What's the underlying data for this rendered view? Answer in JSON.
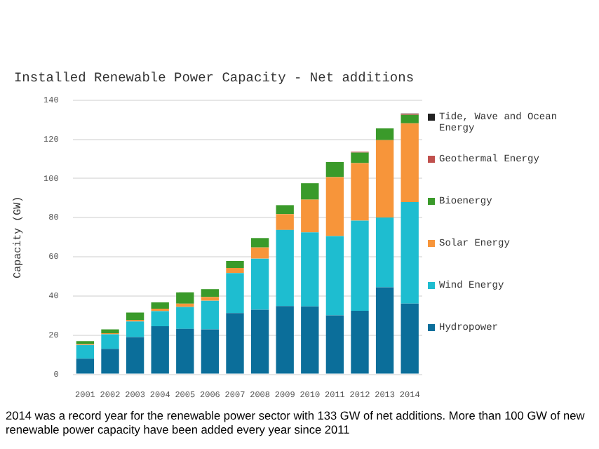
{
  "chart_data": {
    "type": "bar",
    "stacked": true,
    "title": "Installed Renewable Power Capacity - Net additions",
    "ylabel": "Capacity (GW)",
    "categories": [
      "2001",
      "2002",
      "2003",
      "2004",
      "2005",
      "2006",
      "2007",
      "2008",
      "2009",
      "2010",
      "2011",
      "2012",
      "2013",
      "2014"
    ],
    "series": [
      {
        "name": "Hydropower",
        "color": "#0b6e9a",
        "values": [
          8,
          13,
          19,
          24.6,
          23.2,
          23,
          31.3,
          33,
          34.9,
          34.7,
          30.1,
          32.5,
          44.5,
          36.1
        ]
      },
      {
        "name": "Wind Energy",
        "color": "#1ebdd0",
        "values": [
          7,
          7.5,
          8,
          7.7,
          11.2,
          14.6,
          20.4,
          26.1,
          38.8,
          37.8,
          40.5,
          46,
          35.6,
          51.9
        ]
      },
      {
        "name": "Solar Energy",
        "color": "#f7953a",
        "values": [
          0.5,
          0.5,
          0.8,
          1.2,
          1.7,
          1.9,
          2.6,
          5.7,
          8.1,
          16.7,
          30.1,
          29.4,
          39.5,
          40.2
        ]
      },
      {
        "name": "Bioenergy",
        "color": "#3a9a2a",
        "values": [
          1.5,
          2,
          3.8,
          3.3,
          5.8,
          4,
          3.6,
          4.8,
          4.6,
          8.4,
          7.7,
          5.3,
          6,
          4.3
        ]
      },
      {
        "name": "Geothermal Energy",
        "color": "#c0504d",
        "values": [
          null,
          null,
          null,
          null,
          null,
          null,
          null,
          null,
          null,
          null,
          null,
          0.5,
          null,
          0.5
        ]
      },
      {
        "name": "Tide, Wave and Ocean Energy",
        "color": "#222222",
        "values": [
          null,
          null,
          null,
          null,
          null,
          null,
          null,
          null,
          null,
          null,
          null,
          null,
          null,
          0.2
        ]
      }
    ],
    "ylim": [
      0,
      140
    ],
    "yticks": [
      0,
      20,
      40,
      60,
      80,
      100,
      120,
      140
    ],
    "grid": "y",
    "legend": "right",
    "annotations": [
      "2014 was a record year for the renewable power sector with 133 GW of net additions. More than 100 GW of new renewable power capacity have been added every year since 2011"
    ]
  }
}
